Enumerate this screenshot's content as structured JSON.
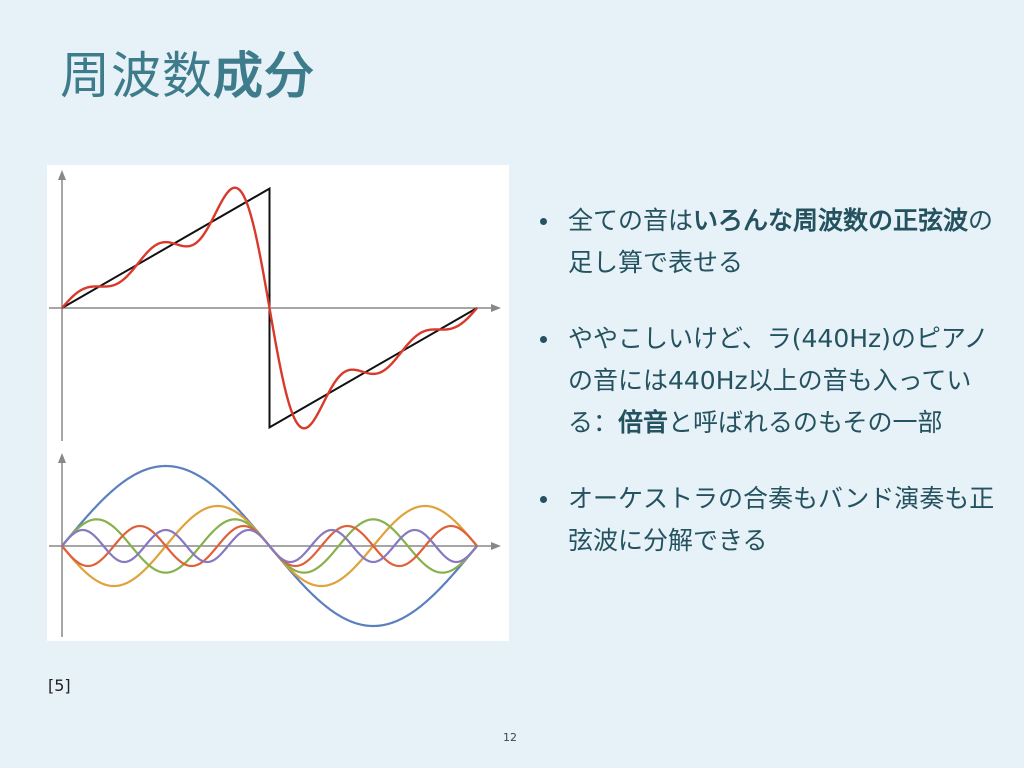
{
  "slide": {
    "title_normal": "周波数",
    "title_bold": "成分",
    "bullets": [
      {
        "parts": [
          {
            "text": "全ての音は",
            "bold": false
          },
          {
            "text": "いろんな周波数の正弦波",
            "bold": true
          },
          {
            "text": "の足し算で表せる",
            "bold": false
          }
        ]
      },
      {
        "parts": [
          {
            "text": "ややこしいけど、ラ(440Hz)のピアノの音には440Hz以上の音も入っている：",
            "bold": false
          },
          {
            "text": "倍音",
            "bold": true
          },
          {
            "text": "と呼ばれるのもその一部",
            "bold": false
          }
        ]
      },
      {
        "parts": [
          {
            "text": "オーケストラの合奏もバンド演奏も正弦波に分解できる",
            "bold": false
          }
        ]
      }
    ],
    "reference": "[5]",
    "page_number": "12"
  },
  "chart_data": [
    {
      "type": "line",
      "panel": "top",
      "x_range": [
        "0",
        "2π"
      ],
      "grid": false,
      "series": [
        {
          "role": "sawtooth",
          "color": "#111111",
          "function": "x/2 on [0,π], x/2-π on (π,2π]"
        },
        {
          "role": "fourier-sum-5-terms",
          "color": "#d93a2b",
          "coefficients": [
            1,
            -0.5,
            0.3333,
            -0.25,
            0.2
          ]
        }
      ]
    },
    {
      "type": "line",
      "panel": "bottom",
      "x_range": [
        "0",
        "2π"
      ],
      "grid": false,
      "series": [
        {
          "harmonic": 1,
          "amplitude": 1,
          "color": "#5b7fbf"
        },
        {
          "harmonic": 2,
          "amplitude": -0.5,
          "color": "#e0a23a"
        },
        {
          "harmonic": 3,
          "amplitude": 0.3333,
          "color": "#88b04b"
        },
        {
          "harmonic": 4,
          "amplitude": -0.25,
          "color": "#e0603a"
        },
        {
          "harmonic": 5,
          "amplitude": 0.2,
          "color": "#8878c0"
        }
      ]
    }
  ]
}
